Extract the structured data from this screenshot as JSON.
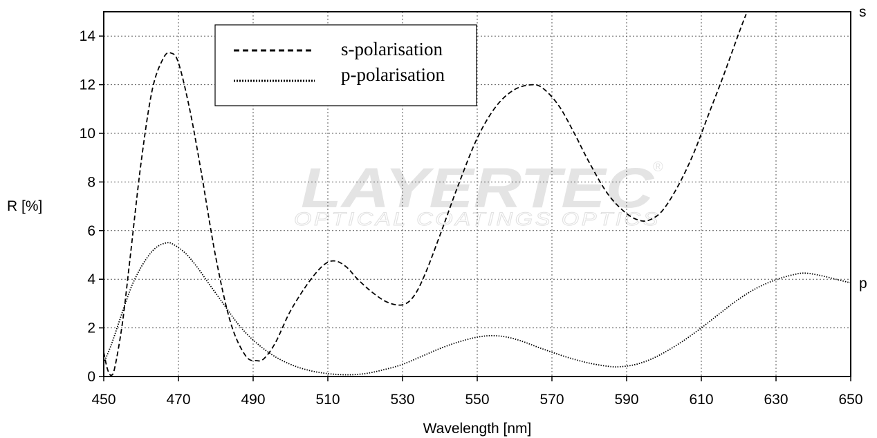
{
  "chart_data": {
    "type": "line",
    "xlabel": "Wavelength [nm]",
    "ylabel": "R [%]",
    "xlim": [
      450,
      650
    ],
    "ylim": [
      0,
      15
    ],
    "xticks": [
      450,
      470,
      490,
      510,
      530,
      550,
      570,
      590,
      610,
      630,
      650
    ],
    "yticks": [
      0,
      2,
      4,
      6,
      8,
      10,
      12,
      14
    ],
    "grid": true,
    "legend_position": "top-left",
    "series": [
      {
        "name": "s-polarisation",
        "end_label": "s",
        "style": "dashed",
        "color": "#000000",
        "x": [
          450,
          451,
          452,
          453,
          455,
          457,
          460,
          463,
          466,
          468,
          470,
          473,
          476,
          480,
          484,
          488,
          491,
          493,
          496,
          500,
          505,
          509,
          512,
          515,
          518,
          522,
          526,
          530,
          533,
          536,
          540,
          545,
          550,
          555,
          560,
          565,
          568,
          572,
          576,
          580,
          585,
          590,
          594,
          597,
          600,
          604,
          608,
          612,
          616,
          620,
          622
        ],
        "values": [
          1.0,
          0.3,
          0.05,
          0.4,
          2.2,
          4.8,
          8.8,
          11.8,
          13.1,
          13.3,
          12.9,
          11.0,
          8.5,
          4.9,
          2.2,
          0.85,
          0.65,
          0.75,
          1.4,
          2.7,
          3.9,
          4.6,
          4.75,
          4.5,
          4.0,
          3.45,
          3.05,
          2.95,
          3.3,
          4.2,
          5.8,
          7.9,
          9.8,
          11.1,
          11.8,
          12.0,
          11.8,
          11.1,
          10.0,
          8.8,
          7.5,
          6.7,
          6.4,
          6.5,
          6.9,
          7.9,
          9.2,
          10.8,
          12.4,
          14.1,
          14.9
        ]
      },
      {
        "name": "p-polarisation",
        "end_label": "p",
        "style": "dotted",
        "color": "#000000",
        "x": [
          450,
          452,
          454,
          456,
          458,
          461,
          464,
          467,
          469,
          472,
          475,
          478,
          482,
          486,
          490,
          495,
          500,
          505,
          510,
          515,
          520,
          525,
          530,
          535,
          540,
          545,
          550,
          554,
          558,
          562,
          566,
          570,
          575,
          580,
          585,
          588,
          592,
          596,
          600,
          605,
          610,
          615,
          620,
          625,
          630,
          635,
          638,
          642,
          646,
          650
        ],
        "values": [
          0.55,
          1.3,
          2.2,
          3.1,
          3.9,
          4.75,
          5.3,
          5.5,
          5.4,
          5.05,
          4.5,
          3.85,
          3.0,
          2.15,
          1.5,
          0.9,
          0.5,
          0.25,
          0.12,
          0.07,
          0.12,
          0.28,
          0.5,
          0.82,
          1.15,
          1.42,
          1.62,
          1.68,
          1.62,
          1.45,
          1.22,
          1.0,
          0.75,
          0.55,
          0.42,
          0.4,
          0.48,
          0.68,
          0.98,
          1.45,
          2.0,
          2.6,
          3.18,
          3.65,
          3.98,
          4.2,
          4.25,
          4.15,
          4.0,
          3.85
        ]
      }
    ]
  },
  "watermark": {
    "brand": "LAYERTEC",
    "registered_mark": "®",
    "tagline": "OPTICAL COATINGS  OPTICS"
  }
}
